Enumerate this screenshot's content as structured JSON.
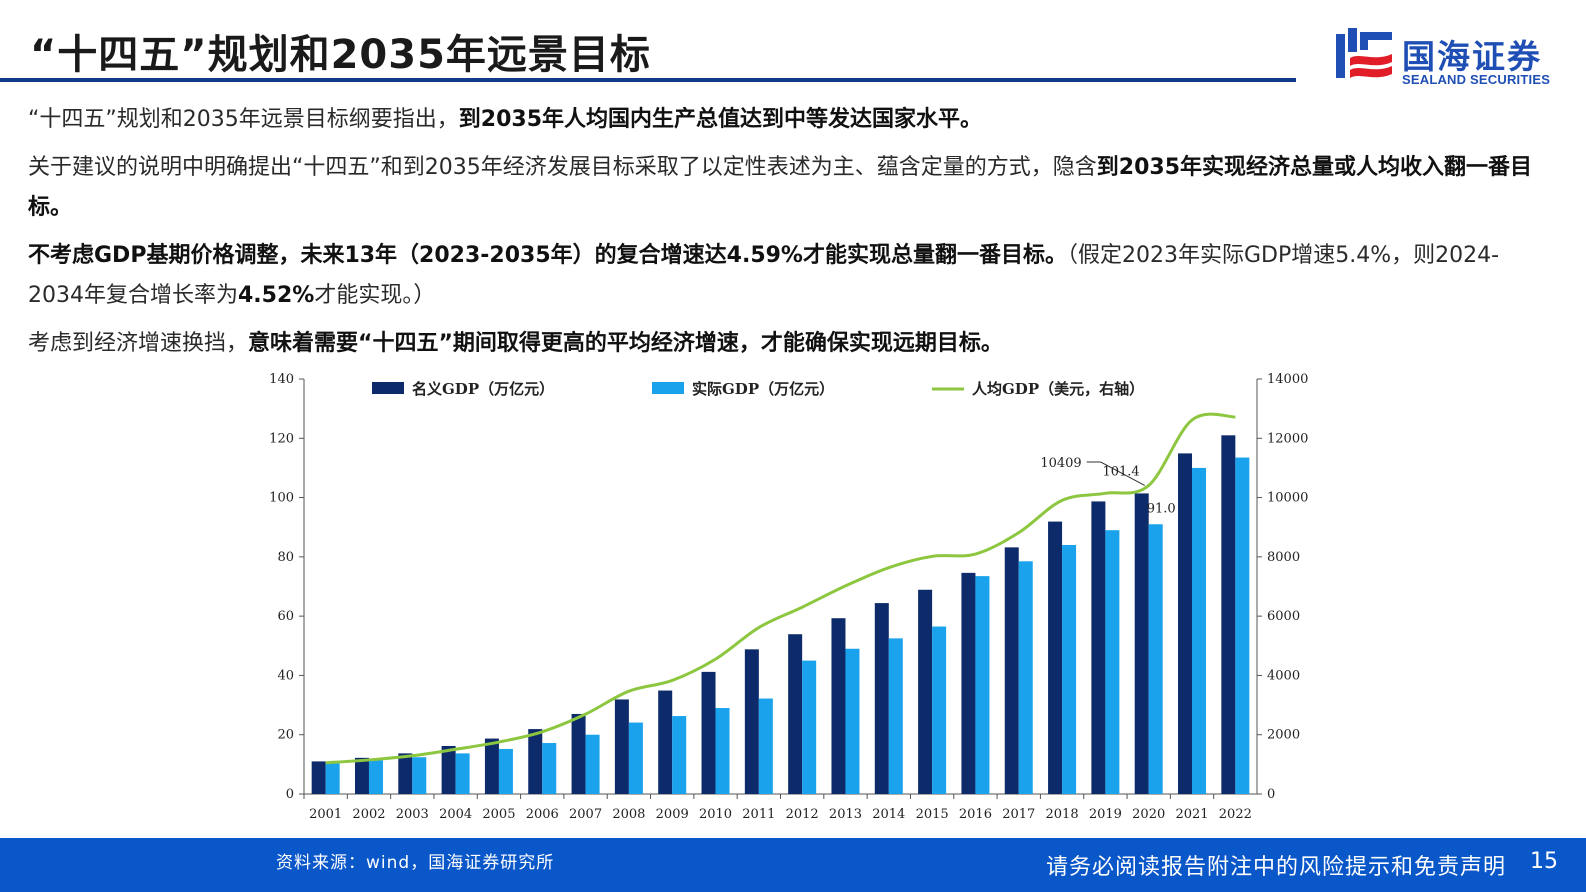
{
  "header": {
    "title": "“十四五”规划和2035年远景目标",
    "logo_cn": "国海证券",
    "logo_en": "SEALAND SECURITIES"
  },
  "paragraphs": {
    "p1_a": "“十四五”规划和2035年远景目标纲要指出，",
    "p1_b": "到2035年人均国内生产总值达到中等发达国家水平。",
    "p2_a": "关于建议的说明中明确提出“十四五”和到2035年经济发展目标采取了以定性表述为主、蕴含定量的方式，隐含",
    "p2_b": "到2035年实现经济总量或人均收入翻一番目标。",
    "p3_a": "不考虑GDP基期价格调整，未来13年（2023-2035年）的复合增速达4.59%才能实现总量翻一番目标。",
    "p3_b": "（假定2023年实际GDP增速5.4%，则2024-2034年复合增长率为",
    "p3_c": "4.52%",
    "p3_d": "才能实现。）",
    "p4_a": "考虑到经济增速换挡，",
    "p4_b": "意味着需要“十四五”期间取得更高的平均经济增速，才能确保实现远期目标。"
  },
  "chart_data": {
    "type": "bar",
    "categories": [
      "2001",
      "2002",
      "2003",
      "2004",
      "2005",
      "2006",
      "2007",
      "2008",
      "2009",
      "2010",
      "2011",
      "2012",
      "2013",
      "2014",
      "2015",
      "2016",
      "2017",
      "2018",
      "2019",
      "2020",
      "2021",
      "2022"
    ],
    "series": [
      {
        "name": "名义GDP（万亿元）",
        "type": "bar",
        "axis": "left",
        "color": "#0d2a6b",
        "values": [
          11.0,
          12.2,
          13.7,
          16.2,
          18.7,
          21.9,
          27.0,
          31.9,
          34.9,
          41.2,
          48.8,
          53.9,
          59.3,
          64.4,
          68.9,
          74.6,
          83.2,
          91.9,
          98.7,
          101.4,
          114.9,
          121.0
        ]
      },
      {
        "name": "实际GDP（万亿元）",
        "type": "bar",
        "axis": "left",
        "color": "#1aa3ec",
        "values": [
          10.3,
          11.3,
          12.4,
          13.7,
          15.2,
          17.2,
          20.0,
          24.1,
          26.3,
          29.0,
          32.2,
          45.0,
          49.0,
          52.5,
          56.5,
          73.5,
          78.5,
          84.0,
          89.0,
          91.0,
          110.0,
          113.5
        ]
      },
      {
        "name": "人均GDP（美元，右轴）",
        "type": "line",
        "axis": "right",
        "color": "#8dc63f",
        "values": [
          1053,
          1149,
          1289,
          1509,
          1753,
          2099,
          2694,
          3468,
          3832,
          4550,
          5614,
          6301,
          7020,
          7636,
          8016,
          8094,
          8817,
          9905,
          10143,
          10409,
          12618,
          12720
        ]
      }
    ],
    "annotations": {
      "line_label": "10409",
      "nominal_label": "101.4",
      "real_label": "91.0"
    },
    "ylim_left": [
      0,
      140
    ],
    "ylim_right": [
      0,
      14000
    ],
    "yticks_left": [
      "0",
      "20",
      "40",
      "60",
      "80",
      "100",
      "120",
      "140"
    ],
    "yticks_right": [
      "0",
      "2000",
      "4000",
      "6000",
      "8000",
      "10000",
      "12000",
      "14000"
    ],
    "legend_position": "top",
    "grid": false
  },
  "footer": {
    "source": "资料来源：wind，国海证券研究所",
    "disclaimer": "请务必阅读报告附注中的风险提示和免责声明",
    "page": "15"
  }
}
